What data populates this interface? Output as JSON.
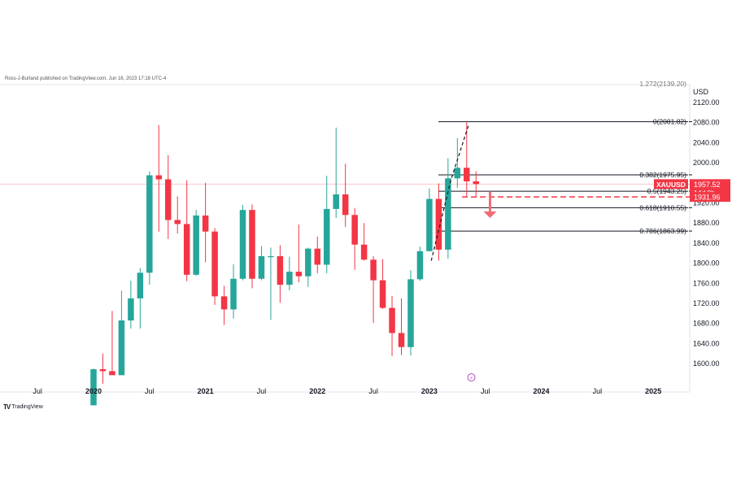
{
  "header": {
    "published": "Ross-J-Burland published on TradingView.com, Jun 16, 2023 17:18 UTC-4"
  },
  "logo": {
    "text": "TradingView"
  },
  "chart_data": {
    "type": "candlestick",
    "symbol": "XAUUSD",
    "currency_label": "USD",
    "timeframe": "monthly",
    "ylim": [
      1560,
      2150
    ],
    "price_ticks": [
      2120,
      2080,
      2040,
      2000,
      1960,
      1920,
      1880,
      1840,
      1800,
      1760,
      1720,
      1680,
      1640,
      1600
    ],
    "time_labels": [
      {
        "label": "Jul",
        "index": -6
      },
      {
        "label": "2020",
        "index": 0
      },
      {
        "label": "Jul",
        "index": 6
      },
      {
        "label": "2021",
        "index": 12
      },
      {
        "label": "Jul",
        "index": 18
      },
      {
        "label": "2022",
        "index": 24
      },
      {
        "label": "Jul",
        "index": 30
      },
      {
        "label": "2023",
        "index": 36
      },
      {
        "label": "Jul",
        "index": 42
      },
      {
        "label": "2024",
        "index": 48
      },
      {
        "label": "Jul",
        "index": 54
      },
      {
        "label": "2025",
        "index": 60
      }
    ],
    "candles": [
      {
        "t": "2020-01",
        "o": 1517,
        "h": 1590,
        "l": 1517,
        "c": 1589
      },
      {
        "t": "2020-02",
        "o": 1589,
        "h": 1620,
        "l": 1560,
        "c": 1585
      },
      {
        "t": "2020-03",
        "o": 1585,
        "h": 1705,
        "l": 1580,
        "c": 1577
      },
      {
        "t": "2020-04",
        "o": 1577,
        "h": 1745,
        "l": 1577,
        "c": 1686
      },
      {
        "t": "2020-05",
        "o": 1686,
        "h": 1765,
        "l": 1670,
        "c": 1730
      },
      {
        "t": "2020-06",
        "o": 1730,
        "h": 1790,
        "l": 1670,
        "c": 1781
      },
      {
        "t": "2020-07",
        "o": 1781,
        "h": 1983,
        "l": 1757,
        "c": 1975
      },
      {
        "t": "2020-08",
        "o": 1975,
        "h": 2075,
        "l": 1863,
        "c": 1967
      },
      {
        "t": "2020-09",
        "o": 1967,
        "h": 2015,
        "l": 1848,
        "c": 1886
      },
      {
        "t": "2020-10",
        "o": 1886,
        "h": 1933,
        "l": 1859,
        "c": 1878
      },
      {
        "t": "2020-11",
        "o": 1878,
        "h": 1965,
        "l": 1764,
        "c": 1777
      },
      {
        "t": "2020-12",
        "o": 1777,
        "h": 1906,
        "l": 1775,
        "c": 1895
      },
      {
        "t": "2021-01",
        "o": 1895,
        "h": 1960,
        "l": 1802,
        "c": 1863
      },
      {
        "t": "2021-02",
        "o": 1863,
        "h": 1870,
        "l": 1717,
        "c": 1734
      },
      {
        "t": "2021-03",
        "o": 1734,
        "h": 1755,
        "l": 1677,
        "c": 1708
      },
      {
        "t": "2021-04",
        "o": 1708,
        "h": 1798,
        "l": 1690,
        "c": 1769
      },
      {
        "t": "2021-05",
        "o": 1769,
        "h": 1916,
        "l": 1766,
        "c": 1906
      },
      {
        "t": "2021-06",
        "o": 1906,
        "h": 1917,
        "l": 1750,
        "c": 1769
      },
      {
        "t": "2021-07",
        "o": 1769,
        "h": 1834,
        "l": 1766,
        "c": 1814
      },
      {
        "t": "2021-08",
        "o": 1814,
        "h": 1831,
        "l": 1687,
        "c": 1814
      },
      {
        "t": "2021-09",
        "o": 1814,
        "h": 1836,
        "l": 1721,
        "c": 1757
      },
      {
        "t": "2021-10",
        "o": 1757,
        "h": 1813,
        "l": 1746,
        "c": 1783
      },
      {
        "t": "2021-11",
        "o": 1783,
        "h": 1877,
        "l": 1762,
        "c": 1774
      },
      {
        "t": "2021-12",
        "o": 1774,
        "h": 1831,
        "l": 1753,
        "c": 1829
      },
      {
        "t": "2022-01",
        "o": 1829,
        "h": 1853,
        "l": 1780,
        "c": 1797
      },
      {
        "t": "2022-02",
        "o": 1797,
        "h": 1974,
        "l": 1780,
        "c": 1908
      },
      {
        "t": "2022-03",
        "o": 1908,
        "h": 2070,
        "l": 1890,
        "c": 1937
      },
      {
        "t": "2022-04",
        "o": 1937,
        "h": 1998,
        "l": 1872,
        "c": 1896
      },
      {
        "t": "2022-05",
        "o": 1896,
        "h": 1910,
        "l": 1787,
        "c": 1837
      },
      {
        "t": "2022-06",
        "o": 1837,
        "h": 1880,
        "l": 1805,
        "c": 1807
      },
      {
        "t": "2022-07",
        "o": 1807,
        "h": 1814,
        "l": 1681,
        "c": 1766
      },
      {
        "t": "2022-08",
        "o": 1766,
        "h": 1808,
        "l": 1709,
        "c": 1711
      },
      {
        "t": "2022-09",
        "o": 1711,
        "h": 1735,
        "l": 1615,
        "c": 1661
      },
      {
        "t": "2022-10",
        "o": 1661,
        "h": 1730,
        "l": 1617,
        "c": 1633
      },
      {
        "t": "2022-11",
        "o": 1633,
        "h": 1786,
        "l": 1616,
        "c": 1768
      },
      {
        "t": "2022-12",
        "o": 1768,
        "h": 1833,
        "l": 1765,
        "c": 1824
      },
      {
        "t": "2023-01",
        "o": 1824,
        "h": 1949,
        "l": 1823,
        "c": 1928
      },
      {
        "t": "2023-02",
        "o": 1928,
        "h": 1959,
        "l": 1805,
        "c": 1827
      },
      {
        "t": "2023-03",
        "o": 1827,
        "h": 2009,
        "l": 1809,
        "c": 1969
      },
      {
        "t": "2023-04",
        "o": 1969,
        "h": 2049,
        "l": 1950,
        "c": 1990
      },
      {
        "t": "2023-05",
        "o": 1990,
        "h": 2081.82,
        "l": 1932,
        "c": 1963
      },
      {
        "t": "2023-06",
        "o": 1963,
        "h": 1983,
        "l": 1932,
        "c": 1957.52
      }
    ],
    "fib_levels": [
      {
        "label": "0(2081.82)",
        "price": 2081.82
      },
      {
        "label": "0.382(1975.95)",
        "price": 1975.95
      },
      {
        "label": "0.5(1943.25)",
        "price": 1943.25
      },
      {
        "label": "0.618(1910.55)",
        "price": 1910.55
      },
      {
        "label": "0.786(1863.99)",
        "price": 1863.99
      }
    ],
    "fib_top_partial": "1.272(2139.20)",
    "last_price": {
      "label": "1957.52",
      "value": 1957.52,
      "countdown": "14d 0h"
    },
    "target": {
      "label": "1931.96",
      "value": 1931.96
    },
    "colors": {
      "up": "#26a69a",
      "down": "#f23645",
      "grid": "#e0e3eb",
      "text": "#131722"
    }
  }
}
